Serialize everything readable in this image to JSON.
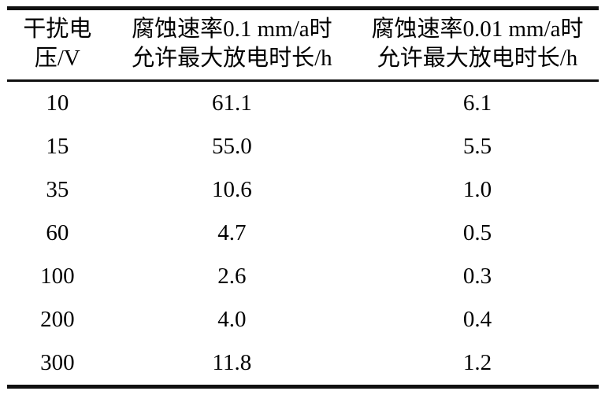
{
  "table": {
    "columns": [
      {
        "header_line1": "干扰电",
        "header_line2": "压/V"
      },
      {
        "header_line1": "腐蚀速率0.1 mm/a时",
        "header_line2": "允许最大放电时长/h"
      },
      {
        "header_line1": "腐蚀速率0.01 mm/a时",
        "header_line2": "允许最大放电时长/h"
      }
    ],
    "rows": [
      [
        "10",
        "61.1",
        "6.1"
      ],
      [
        "15",
        "55.0",
        "5.5"
      ],
      [
        "35",
        "10.6",
        "1.0"
      ],
      [
        "60",
        "4.7",
        "0.5"
      ],
      [
        "100",
        "2.6",
        "0.3"
      ],
      [
        "200",
        "4.0",
        "0.4"
      ],
      [
        "300",
        "11.8",
        "1.2"
      ]
    ]
  },
  "colors": {
    "rule": "#101010",
    "text": "#000000",
    "background": "#ffffff"
  },
  "chart_data": {
    "type": "table",
    "title": "",
    "columns": [
      "干扰电压/V",
      "腐蚀速率0.1 mm/a时允许最大放电时长/h",
      "腐蚀速率0.01 mm/a时允许最大放电时长/h"
    ],
    "interference_voltage_V": [
      10,
      15,
      35,
      60,
      100,
      200,
      300
    ],
    "max_discharge_duration_h_at_0.1mm_a": [
      61.1,
      55.0,
      10.6,
      4.7,
      2.6,
      4.0,
      11.8
    ],
    "max_discharge_duration_h_at_0.01mm_a": [
      6.1,
      5.5,
      1.0,
      0.5,
      0.3,
      0.4,
      1.2
    ]
  }
}
